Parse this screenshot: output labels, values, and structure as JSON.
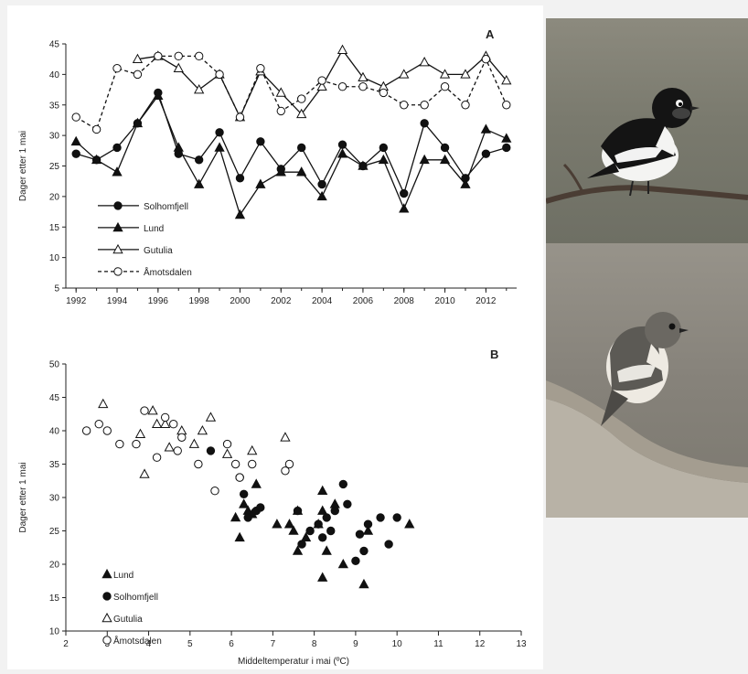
{
  "chart_data": [
    {
      "panel_letter": "A",
      "type": "line",
      "ylabel": "Dager etter 1 mai",
      "xlim": [
        1991.5,
        2013.5
      ],
      "ylim": [
        5,
        45
      ],
      "x_ticks": [
        "1992",
        "1994",
        "1996",
        "1998",
        "2000",
        "2002",
        "2004",
        "2006",
        "2008",
        "2010",
        "2012"
      ],
      "y_ticks": [
        "5",
        "10",
        "15",
        "20",
        "25",
        "30",
        "35",
        "40",
        "45"
      ],
      "legend_position": "bottom-left",
      "series": [
        {
          "name": "Solhomfjell",
          "marker": "filled-circle",
          "line": "solid",
          "x": [
            1992,
            1993,
            1994,
            1995,
            1996,
            1997,
            1998,
            1999,
            2000,
            2001,
            2002,
            2003,
            2004,
            2005,
            2006,
            2007,
            2008,
            2009,
            2010,
            2011,
            2012,
            2013
          ],
          "y": [
            27,
            26,
            28,
            32,
            37,
            27,
            26,
            30.5,
            23,
            29,
            24.5,
            28,
            22,
            28.5,
            25,
            28,
            20.5,
            32,
            28,
            23,
            27,
            28
          ]
        },
        {
          "name": "Lund",
          "marker": "filled-triangle",
          "line": "solid",
          "x": [
            1992,
            1993,
            1994,
            1995,
            1996,
            1997,
            1998,
            1999,
            2000,
            2001,
            2002,
            2003,
            2004,
            2005,
            2006,
            2007,
            2008,
            2009,
            2010,
            2011,
            2012,
            2013
          ],
          "y": [
            29,
            26,
            24,
            32,
            36.5,
            28,
            22,
            28,
            17,
            22,
            24,
            24,
            20,
            27,
            25,
            26,
            18,
            26,
            26,
            22,
            31,
            29.5
          ]
        },
        {
          "name": "Gutulia",
          "marker": "open-triangle",
          "line": "solid",
          "x": [
            1995,
            1996,
            1997,
            1998,
            1999,
            2000,
            2001,
            2002,
            2003,
            2004,
            2005,
            2006,
            2007,
            2008,
            2009,
            2010,
            2011,
            2012,
            2013
          ],
          "y": [
            42.5,
            43,
            41,
            37.5,
            40,
            33,
            40.5,
            37,
            33.5,
            38,
            44,
            39.5,
            38,
            40,
            42,
            40,
            40,
            43,
            39
          ]
        },
        {
          "name": "Åmotsdalen",
          "marker": "open-circle",
          "line": "dashed",
          "x": [
            1992,
            1993,
            1994,
            1995,
            1996,
            1997,
            1998,
            1999,
            2000,
            2001,
            2002,
            2003,
            2004,
            2005,
            2006,
            2007,
            2008,
            2009,
            2010,
            2011,
            2012,
            2013
          ],
          "y": [
            33,
            31,
            41,
            40,
            43,
            43,
            43,
            40,
            33,
            41,
            34,
            36,
            39,
            38,
            38,
            37,
            35,
            35,
            38,
            35,
            42.5,
            35
          ]
        }
      ]
    },
    {
      "panel_letter": "B",
      "type": "scatter",
      "xlabel": "Middeltemperatur i mai (ºC)",
      "ylabel": "Dager etter 1 mai",
      "xlim": [
        2,
        13
      ],
      "ylim": [
        10,
        50
      ],
      "x_ticks": [
        "2",
        "3",
        "4",
        "5",
        "6",
        "7",
        "8",
        "9",
        "10",
        "11",
        "12",
        "13"
      ],
      "y_ticks": [
        "10",
        "15",
        "20",
        "25",
        "30",
        "35",
        "40",
        "45",
        "50"
      ],
      "legend_position": "bottom-left",
      "series": [
        {
          "name": "Lund",
          "marker": "filled-triangle",
          "x": [
            6.1,
            6.2,
            6.4,
            6.5,
            6.6,
            7.1,
            7.4,
            7.5,
            7.6,
            7.8,
            8.1,
            8.2,
            8.2,
            8.3,
            8.5,
            8.7,
            9.2,
            9.3,
            10.3,
            8.2,
            7.6,
            6.3
          ],
          "y": [
            27,
            24,
            28,
            27.5,
            32,
            26,
            26,
            25,
            22,
            24,
            26,
            28,
            31,
            22,
            29,
            20,
            17,
            25,
            26,
            18,
            28,
            29
          ]
        },
        {
          "name": "Solhomfjell",
          "marker": "filled-circle",
          "x": [
            5.5,
            6.2,
            6.3,
            6.4,
            6.6,
            6.7,
            7.6,
            7.7,
            7.9,
            8.1,
            8.3,
            8.5,
            8.7,
            8.8,
            9,
            9.1,
            9.2,
            9.3,
            9.6,
            9.8,
            10,
            8.4,
            8.2
          ],
          "y": [
            37,
            33,
            30.5,
            27,
            28,
            28.5,
            28,
            23,
            25,
            26,
            27,
            28,
            32,
            29,
            20.5,
            24.5,
            22,
            26,
            27,
            23,
            27,
            25,
            24
          ]
        },
        {
          "name": "Gutulia",
          "marker": "open-triangle",
          "x": [
            2.9,
            3.8,
            3.9,
            4.1,
            4.2,
            4.4,
            4.5,
            4.8,
            5.1,
            5.3,
            5.5,
            5.9,
            6.5,
            7.3
          ],
          "y": [
            44,
            39.5,
            33.5,
            43,
            41,
            41,
            37.5,
            40,
            38,
            40,
            42,
            36.5,
            37,
            39
          ]
        },
        {
          "name": "Åmotsdalen",
          "marker": "open-circle",
          "x": [
            2.5,
            2.8,
            3,
            3.3,
            3.7,
            3.9,
            4.2,
            4.4,
            4.6,
            4.8,
            5.2,
            5.6,
            5.9,
            6.1,
            6.2,
            6.5,
            7.3,
            7.4,
            4.7
          ],
          "y": [
            40,
            41,
            40,
            38,
            38,
            43,
            36,
            42,
            41,
            39,
            35,
            31,
            38,
            35,
            33,
            35,
            34,
            35,
            37
          ]
        }
      ]
    }
  ],
  "photos": [
    {
      "icon": "male-pied-flycatcher-photo"
    },
    {
      "icon": "female-pied-flycatcher-photo"
    }
  ]
}
